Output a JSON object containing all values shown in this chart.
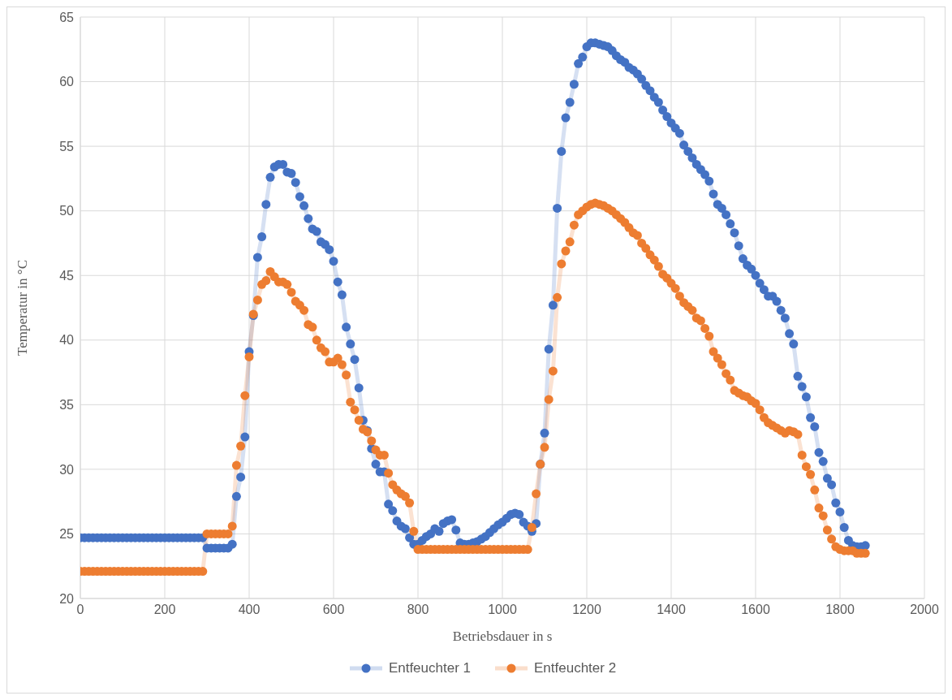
{
  "chart_data": {
    "type": "line",
    "xlabel": "Betriebsdauer in s",
    "ylabel": "Temperatur in °C",
    "x": [
      0,
      10,
      20,
      30,
      40,
      50,
      60,
      70,
      80,
      90,
      100,
      110,
      120,
      130,
      140,
      150,
      160,
      170,
      180,
      190,
      200,
      210,
      220,
      230,
      240,
      250,
      260,
      270,
      280,
      290,
      300,
      310,
      320,
      330,
      340,
      350,
      360,
      370,
      380,
      390,
      400,
      410,
      420,
      430,
      440,
      450,
      460,
      470,
      480,
      490,
      500,
      510,
      520,
      530,
      540,
      550,
      560,
      570,
      580,
      590,
      600,
      610,
      620,
      630,
      640,
      650,
      660,
      670,
      680,
      690,
      700,
      710,
      720,
      730,
      740,
      750,
      760,
      770,
      780,
      790,
      800,
      810,
      820,
      830,
      840,
      850,
      860,
      870,
      880,
      890,
      900,
      910,
      920,
      930,
      940,
      950,
      960,
      970,
      980,
      990,
      1000,
      1010,
      1020,
      1030,
      1040,
      1050,
      1060,
      1070,
      1080,
      1090,
      1100,
      1110,
      1120,
      1130,
      1140,
      1150,
      1160,
      1170,
      1180,
      1190,
      1200,
      1210,
      1220,
      1230,
      1240,
      1250,
      1260,
      1270,
      1280,
      1290,
      1300,
      1310,
      1320,
      1330,
      1340,
      1350,
      1360,
      1370,
      1380,
      1390,
      1400,
      1410,
      1420,
      1430,
      1440,
      1450,
      1460,
      1470,
      1480,
      1490,
      1500,
      1510,
      1520,
      1530,
      1540,
      1550,
      1560,
      1570,
      1580,
      1590,
      1600,
      1610,
      1620,
      1630,
      1640,
      1650,
      1660,
      1670,
      1680,
      1690,
      1700,
      1710,
      1720,
      1730,
      1740,
      1750,
      1760,
      1770,
      1780,
      1790,
      1800,
      1810,
      1820,
      1830,
      1840,
      1850,
      1860
    ],
    "series": [
      {
        "name": "Entfeuchter 1",
        "color": "#4472c4",
        "values": [
          24.7,
          24.7,
          24.7,
          24.7,
          24.7,
          24.7,
          24.7,
          24.7,
          24.7,
          24.7,
          24.7,
          24.7,
          24.7,
          24.7,
          24.7,
          24.7,
          24.7,
          24.7,
          24.7,
          24.7,
          24.7,
          24.7,
          24.7,
          24.7,
          24.7,
          24.7,
          24.7,
          24.7,
          24.7,
          24.7,
          23.9,
          23.9,
          23.9,
          23.9,
          23.9,
          23.9,
          24.2,
          27.9,
          29.4,
          32.5,
          39.1,
          41.9,
          46.4,
          48.0,
          50.5,
          52.6,
          53.4,
          53.6,
          53.6,
          53.0,
          52.9,
          52.2,
          51.1,
          50.4,
          49.4,
          48.6,
          48.4,
          47.6,
          47.4,
          47.0,
          46.1,
          44.5,
          43.5,
          41.0,
          39.7,
          38.5,
          36.3,
          33.8,
          33.0,
          31.6,
          30.4,
          29.8,
          29.8,
          27.3,
          26.8,
          26.0,
          25.6,
          25.4,
          24.7,
          24.2,
          24.2,
          24.5,
          24.8,
          25.0,
          25.4,
          25.2,
          25.8,
          26.0,
          26.1,
          25.3,
          24.3,
          24.2,
          24.2,
          24.3,
          24.4,
          24.6,
          24.8,
          25.1,
          25.4,
          25.7,
          25.9,
          26.2,
          26.5,
          26.6,
          26.5,
          25.9,
          25.6,
          25.2,
          25.8,
          30.4,
          32.8,
          39.3,
          42.7,
          50.2,
          54.6,
          57.2,
          58.4,
          59.8,
          61.4,
          61.9,
          62.7,
          63.0,
          63.0,
          62.9,
          62.8,
          62.7,
          62.4,
          62.0,
          61.7,
          61.5,
          61.1,
          60.9,
          60.6,
          60.2,
          59.7,
          59.3,
          58.8,
          58.4,
          57.8,
          57.3,
          56.8,
          56.4,
          56.0,
          55.1,
          54.6,
          54.1,
          53.6,
          53.2,
          52.8,
          52.3,
          51.3,
          50.5,
          50.2,
          49.7,
          49.0,
          48.3,
          47.3,
          46.3,
          45.8,
          45.5,
          45.0,
          44.4,
          43.9,
          43.4,
          43.4,
          43.0,
          42.3,
          41.7,
          40.5,
          39.7,
          37.2,
          36.4,
          35.6,
          34.0,
          33.3,
          31.3,
          30.6,
          29.3,
          28.8,
          27.4,
          26.7,
          25.5,
          24.5,
          24.1,
          24.0,
          24.0,
          24.1
        ]
      },
      {
        "name": "Entfeuchter 2",
        "color": "#ed7d31",
        "values": [
          22.1,
          22.1,
          22.1,
          22.1,
          22.1,
          22.1,
          22.1,
          22.1,
          22.1,
          22.1,
          22.1,
          22.1,
          22.1,
          22.1,
          22.1,
          22.1,
          22.1,
          22.1,
          22.1,
          22.1,
          22.1,
          22.1,
          22.1,
          22.1,
          22.1,
          22.1,
          22.1,
          22.1,
          22.1,
          22.1,
          25.0,
          25.0,
          25.0,
          25.0,
          25.0,
          25.0,
          25.6,
          30.3,
          31.8,
          35.7,
          38.7,
          42.0,
          43.1,
          44.3,
          44.6,
          45.3,
          44.9,
          44.5,
          44.5,
          44.3,
          43.7,
          43.0,
          42.7,
          42.3,
          41.2,
          41.0,
          40.0,
          39.4,
          39.1,
          38.3,
          38.3,
          38.6,
          38.1,
          37.3,
          35.2,
          34.6,
          33.8,
          33.1,
          32.9,
          32.2,
          31.5,
          31.1,
          31.1,
          29.7,
          28.8,
          28.4,
          28.1,
          27.9,
          27.4,
          25.2,
          23.8,
          23.8,
          23.8,
          23.8,
          23.8,
          23.8,
          23.8,
          23.8,
          23.8,
          23.8,
          23.8,
          23.8,
          23.8,
          23.8,
          23.8,
          23.8,
          23.8,
          23.8,
          23.8,
          23.8,
          23.8,
          23.8,
          23.8,
          23.8,
          23.8,
          23.8,
          23.8,
          25.5,
          28.1,
          30.4,
          31.7,
          35.4,
          37.6,
          43.3,
          45.9,
          46.9,
          47.6,
          48.9,
          49.7,
          50.0,
          50.3,
          50.5,
          50.6,
          50.5,
          50.4,
          50.2,
          50.0,
          49.7,
          49.4,
          49.1,
          48.7,
          48.3,
          48.1,
          47.5,
          47.1,
          46.6,
          46.2,
          45.7,
          45.1,
          44.8,
          44.4,
          44.0,
          43.4,
          42.9,
          42.6,
          42.3,
          41.7,
          41.5,
          40.9,
          40.3,
          39.1,
          38.6,
          38.1,
          37.4,
          36.9,
          36.1,
          35.9,
          35.7,
          35.6,
          35.3,
          35.1,
          34.6,
          34.0,
          33.6,
          33.4,
          33.2,
          33.0,
          32.8,
          33.0,
          32.9,
          32.7,
          31.1,
          30.2,
          29.6,
          28.4,
          27.0,
          26.4,
          25.3,
          24.6,
          24.0,
          23.8,
          23.7,
          23.7,
          23.7,
          23.5,
          23.5,
          23.5
        ]
      }
    ],
    "xlim": [
      0,
      2000
    ],
    "xticks": [
      0,
      200,
      400,
      600,
      800,
      1000,
      1200,
      1400,
      1600,
      1800,
      2000
    ],
    "ylim": [
      20,
      65
    ],
    "yticks": [
      20,
      25,
      30,
      35,
      40,
      45,
      50,
      55,
      60,
      65
    ],
    "grid": true,
    "legend": "bottom",
    "marker": "circle",
    "line_style": "solid"
  }
}
